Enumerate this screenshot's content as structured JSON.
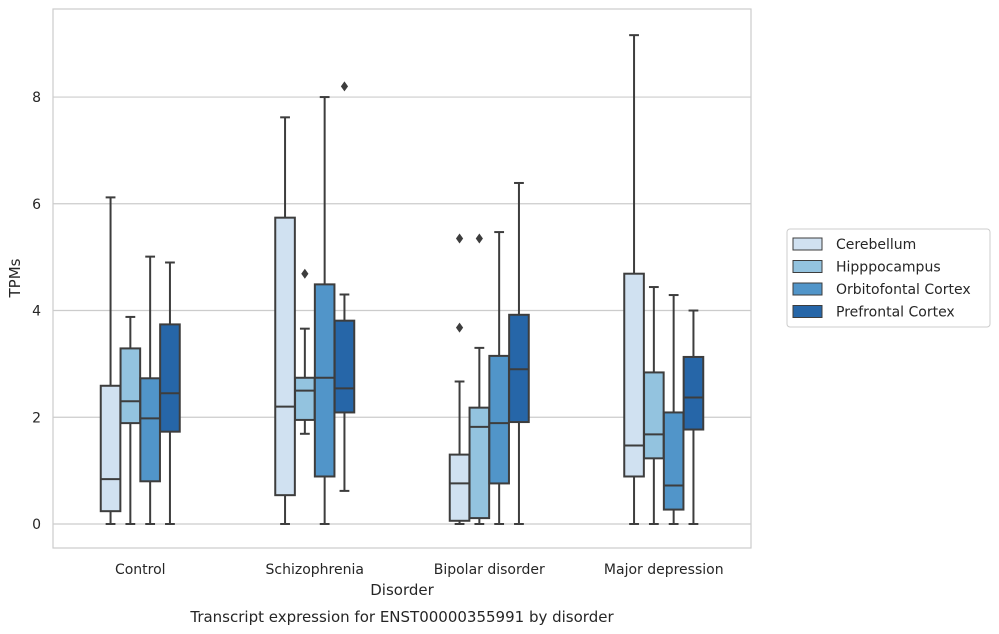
{
  "chart_data": {
    "type": "box",
    "caption": "Transcript expression for ENST00000355991 by disorder",
    "xlabel": "Disorder",
    "ylabel": "TPMs",
    "ylim": [
      -0.45,
      9.65
    ],
    "yticks": [
      0,
      2,
      4,
      6,
      8
    ],
    "grid": "horizontal",
    "legend_position": "right",
    "categories": [
      "Control",
      "Schizophrenia",
      "Bipolar disorder",
      "Major depression"
    ],
    "series": [
      {
        "name": "Cerebellum",
        "color": "#d0e1f1",
        "boxes": [
          {
            "whislo": 0.0,
            "q1": 0.24,
            "med": 0.84,
            "q3": 2.59,
            "whishi": 6.12,
            "fliers": []
          },
          {
            "whislo": 0.0,
            "q1": 0.54,
            "med": 2.2,
            "q3": 5.74,
            "whishi": 7.62,
            "fliers": []
          },
          {
            "whislo": 0.0,
            "q1": 0.06,
            "med": 0.76,
            "q3": 1.3,
            "whishi": 2.67,
            "fliers": [
              3.68,
              5.35
            ]
          },
          {
            "whislo": 0.0,
            "q1": 0.89,
            "med": 1.47,
            "q3": 4.69,
            "whishi": 9.16,
            "fliers": []
          }
        ]
      },
      {
        "name": "Hipppocampus",
        "color": "#93c3df",
        "boxes": [
          {
            "whislo": 0.0,
            "q1": 1.89,
            "med": 2.3,
            "q3": 3.29,
            "whishi": 3.88,
            "fliers": []
          },
          {
            "whislo": 1.69,
            "q1": 1.95,
            "med": 2.5,
            "q3": 2.74,
            "whishi": 3.66,
            "fliers": [
              4.69
            ]
          },
          {
            "whislo": 0.0,
            "q1": 0.11,
            "med": 1.82,
            "q3": 2.18,
            "whishi": 3.3,
            "fliers": [
              5.35
            ]
          },
          {
            "whislo": 0.0,
            "q1": 1.23,
            "med": 1.68,
            "q3": 2.84,
            "whishi": 4.44,
            "fliers": []
          }
        ]
      },
      {
        "name": "Orbitofontal Cortex",
        "color": "#5195c9",
        "boxes": [
          {
            "whislo": 0.0,
            "q1": 0.8,
            "med": 1.98,
            "q3": 2.73,
            "whishi": 5.01,
            "fliers": []
          },
          {
            "whislo": 0.0,
            "q1": 0.89,
            "med": 2.74,
            "q3": 4.49,
            "whishi": 8.0,
            "fliers": []
          },
          {
            "whislo": 0.0,
            "q1": 0.76,
            "med": 1.89,
            "q3": 3.15,
            "whishi": 5.47,
            "fliers": []
          },
          {
            "whislo": 0.0,
            "q1": 0.27,
            "med": 0.72,
            "q3": 2.09,
            "whishi": 4.29,
            "fliers": []
          }
        ]
      },
      {
        "name": "Prefrontal Cortex",
        "color": "#2666a8",
        "boxes": [
          {
            "whislo": 0.0,
            "q1": 1.73,
            "med": 2.45,
            "q3": 3.74,
            "whishi": 4.9,
            "fliers": []
          },
          {
            "whislo": 0.62,
            "q1": 2.09,
            "med": 2.54,
            "q3": 3.81,
            "whishi": 4.3,
            "fliers": [
              8.2
            ]
          },
          {
            "whislo": 0.0,
            "q1": 1.91,
            "med": 2.9,
            "q3": 3.92,
            "whishi": 6.39,
            "fliers": []
          },
          {
            "whislo": 0.0,
            "q1": 1.77,
            "med": 2.37,
            "q3": 3.13,
            "whishi": 4.0,
            "fliers": []
          }
        ]
      }
    ]
  },
  "styles": {
    "line_color": "#3d3d3d",
    "grid_color": "#cccccc",
    "frame_color": "#cccccc"
  }
}
